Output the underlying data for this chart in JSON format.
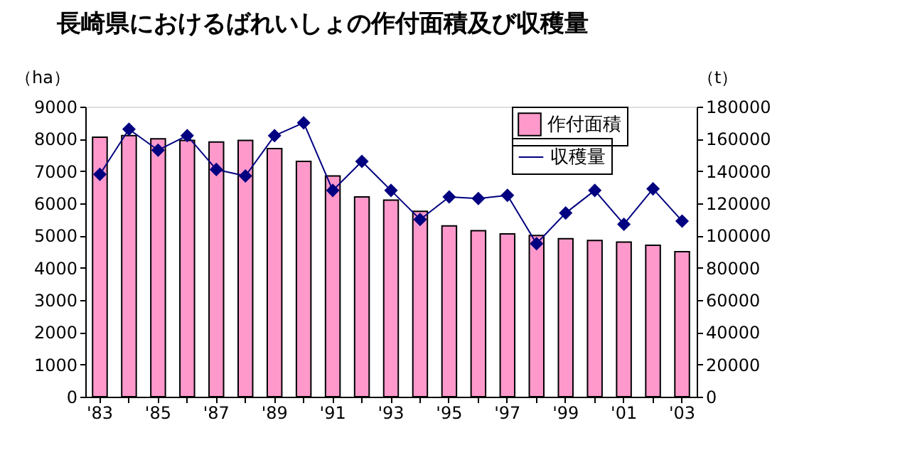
{
  "chart_data": {
    "type": "bar",
    "title": "長崎県におけるばれいしょの作付面積及び収穫量",
    "categories": [
      "'83",
      null,
      "'85",
      null,
      "'87",
      null,
      "'89",
      null,
      "'91",
      null,
      "'93",
      null,
      "'95",
      null,
      "'97",
      null,
      "'99",
      null,
      "'01",
      null,
      "'03"
    ],
    "series": [
      {
        "name": "作付面積",
        "color": "#ff99cc",
        "values": [
          8050,
          8100,
          8000,
          7950,
          7900,
          7950,
          7700,
          7300,
          6850,
          6200,
          6100,
          5750,
          5300,
          5150,
          5050,
          5000,
          4900,
          4850,
          4800,
          4700,
          4500
        ]
      },
      {
        "name": "収穫量",
        "type": "line",
        "axis": "y2",
        "color": "#000080",
        "values": [
          138000,
          166000,
          153000,
          162000,
          141000,
          137000,
          162000,
          170000,
          128000,
          146000,
          128000,
          110000,
          124000,
          123000,
          125000,
          95000,
          114000,
          128000,
          107000,
          129000,
          109000
        ]
      }
    ],
    "ylabel": "（ha）",
    "y2label": "（t）",
    "ylim": [
      0,
      9000
    ],
    "yticks": [
      0,
      1000,
      2000,
      3000,
      4000,
      5000,
      6000,
      7000,
      8000,
      9000
    ],
    "y2lim": [
      0,
      180000
    ],
    "y2ticks": [
      0,
      20000,
      40000,
      60000,
      80000,
      100000,
      120000,
      140000,
      160000,
      180000
    ],
    "marker": "diamond",
    "line_style": "solid",
    "legend": "top right",
    "grid": false
  }
}
